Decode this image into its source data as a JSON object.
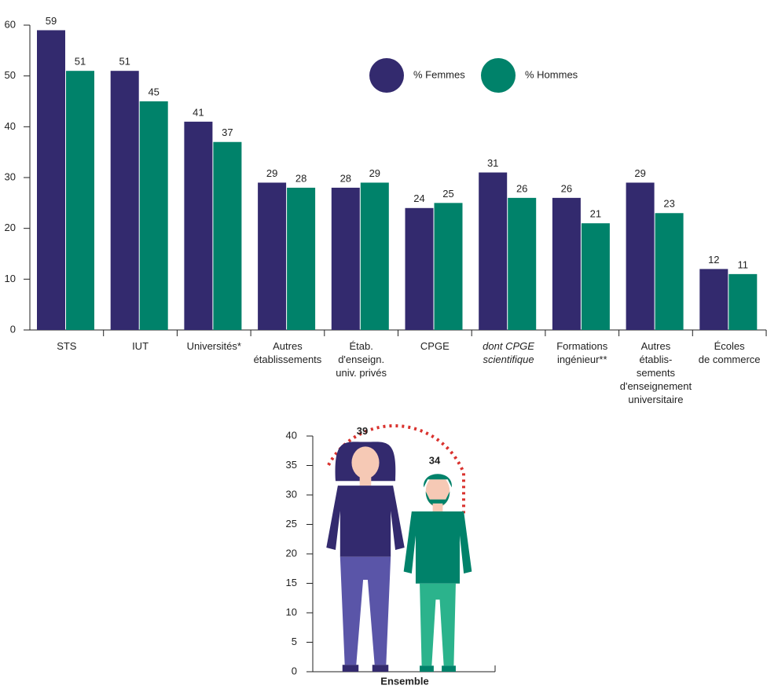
{
  "chart_data": [
    {
      "type": "bar",
      "categories": [
        "STS",
        "IUT",
        "Universités*",
        "Autres\nétablissements",
        "Étab.\nd'enseign.\nuniv. privés",
        "CPGE",
        "dont CPGE\nscientifique",
        "Formations\ningénieur**",
        "Autres\nétablis-\nsements\nd'enseignement\nuniversitaire",
        "Écoles\nde commerce"
      ],
      "series": [
        {
          "name": "% Femmes",
          "color": "#332a6e",
          "values": [
            59,
            51,
            41,
            29,
            28,
            24,
            31,
            26,
            29,
            12
          ]
        },
        {
          "name": "% Hommes",
          "color": "#00826a",
          "values": [
            51,
            45,
            37,
            28,
            29,
            25,
            26,
            21,
            23,
            11
          ]
        }
      ],
      "ylim": [
        0,
        60
      ],
      "yticks": [
        0,
        10,
        20,
        30,
        40,
        50,
        60
      ]
    },
    {
      "type": "pictograph",
      "categories": [
        "Ensemble"
      ],
      "series": [
        {
          "color": "#332a6e",
          "values": [
            39
          ]
        },
        {
          "color": "#00826a",
          "values": [
            34
          ]
        }
      ],
      "ylim": [
        0,
        40
      ],
      "yticks": [
        0,
        5,
        10,
        15,
        20,
        25,
        30,
        35,
        40
      ]
    }
  ]
}
